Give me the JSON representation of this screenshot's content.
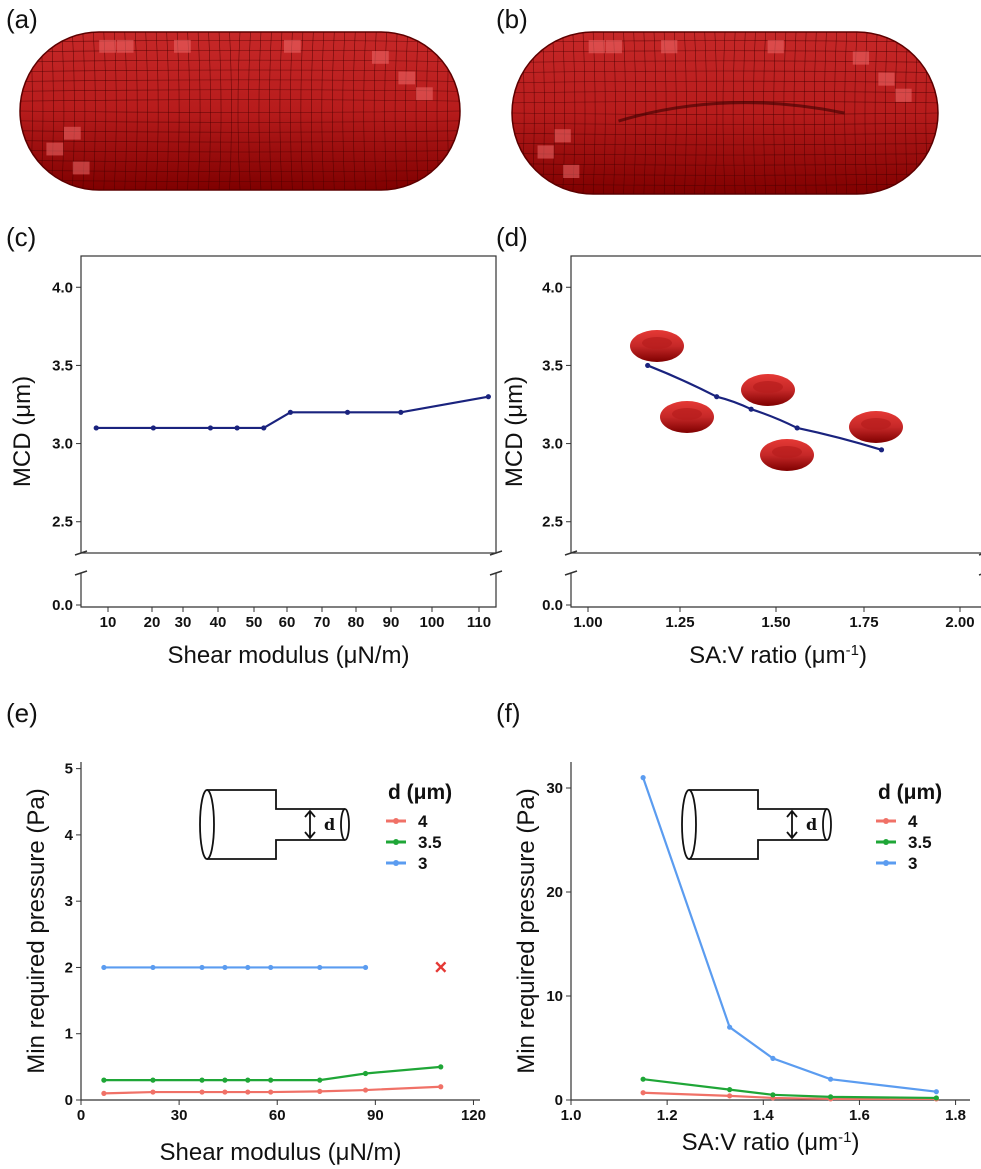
{
  "panel_labels": [
    "(a)",
    "(b)",
    "(c)",
    "(d)",
    "(e)",
    "(f)"
  ],
  "cells": {
    "a": {
      "name": "cell-rendering-a",
      "dimple": false
    },
    "b": {
      "name": "cell-rendering-b",
      "dimple": true
    }
  },
  "chart_data": [
    {
      "id": "c",
      "type": "line",
      "xlabel": "Shear modulus (μN/m)",
      "ylabel": "MCD (μm)",
      "xticks": [
        "10",
        "20",
        "30",
        "40",
        "50",
        "60",
        "70",
        "80",
        "90",
        "100",
        "110"
      ],
      "yticks": [
        "0.0",
        "2.5",
        "3.0",
        "3.5",
        "4.0"
      ],
      "xlim": [
        3,
        112
      ],
      "ylim": [
        2.3,
        4.2
      ],
      "axis_break": true,
      "series": [
        {
          "color": "#1a237e",
          "x": [
            7,
            22,
            37,
            44,
            51,
            58,
            73,
            87,
            110
          ],
          "y": [
            3.1,
            3.1,
            3.1,
            3.1,
            3.1,
            3.2,
            3.2,
            3.2,
            3.3
          ]
        }
      ]
    },
    {
      "id": "d",
      "type": "line",
      "xlabel": "SA:V ratio (μm",
      "xlabel_sup": "-1",
      "xlabel_end": ")",
      "ylabel": "MCD (μm)",
      "xticks": [
        "1.00",
        "1.25",
        "1.50",
        "1.75",
        "2.00"
      ],
      "yticks": [
        "0.0",
        "2.5",
        "3.0",
        "3.5",
        "4.0"
      ],
      "xlim": [
        0.95,
        2.03
      ],
      "ylim": [
        2.3,
        4.2
      ],
      "axis_break": true,
      "series": [
        {
          "color": "#1a237e",
          "x": [
            1.15,
            1.33,
            1.42,
            1.54,
            1.76
          ],
          "y": [
            3.5,
            3.3,
            3.22,
            3.1,
            2.96
          ]
        }
      ],
      "icons": "rbc-icon"
    },
    {
      "id": "e",
      "type": "line",
      "xlabel": "Shear modulus (μN/m)",
      "ylabel": "Min required pressure (Pa)",
      "xticks": [
        "0",
        "30",
        "60",
        "90",
        "120"
      ],
      "yticks": [
        "0",
        "1",
        "2",
        "3",
        "4",
        "5"
      ],
      "xlim": [
        0,
        122
      ],
      "ylim": [
        0,
        5.1
      ],
      "legend": {
        "title": "d (μm)",
        "placement": "top-right"
      },
      "series": [
        {
          "name": "4",
          "color": "#f07167",
          "x": [
            7,
            22,
            37,
            44,
            51,
            58,
            73,
            87,
            110
          ],
          "y": [
            0.1,
            0.12,
            0.12,
            0.12,
            0.12,
            0.12,
            0.13,
            0.15,
            0.2
          ]
        },
        {
          "name": "3.5",
          "color": "#1fa637",
          "x": [
            7,
            22,
            37,
            44,
            51,
            58,
            73,
            87,
            110
          ],
          "y": [
            0.3,
            0.3,
            0.3,
            0.3,
            0.3,
            0.3,
            0.3,
            0.4,
            0.5
          ]
        },
        {
          "name": "3",
          "color": "#5b9cf0",
          "x": [
            7,
            22,
            37,
            44,
            51,
            58,
            73,
            87
          ],
          "y": [
            2,
            2,
            2,
            2,
            2,
            2,
            2,
            2
          ]
        }
      ],
      "marker": {
        "symbol": "×",
        "color": "#e53935",
        "x": 110,
        "y": 2
      }
    },
    {
      "id": "f",
      "type": "line",
      "xlabel": "SA:V ratio (μm",
      "xlabel_sup": "-1",
      "xlabel_end": ")",
      "ylabel": "Min required pressure (Pa)",
      "xticks": [
        "1.0",
        "1.2",
        "1.4",
        "1.6",
        "1.8"
      ],
      "yticks": [
        "0",
        "10",
        "20",
        "30"
      ],
      "xlim": [
        1.0,
        1.83
      ],
      "ylim": [
        0,
        32.5
      ],
      "legend": {
        "title": "d (μm)",
        "placement": "top-right"
      },
      "series": [
        {
          "name": "4",
          "color": "#f07167",
          "x": [
            1.15,
            1.33,
            1.42,
            1.54,
            1.76
          ],
          "y": [
            0.7,
            0.4,
            0.2,
            0.1,
            0.1
          ]
        },
        {
          "name": "3.5",
          "color": "#1fa637",
          "x": [
            1.15,
            1.33,
            1.42,
            1.54,
            1.76
          ],
          "y": [
            2,
            1,
            0.5,
            0.3,
            0.2
          ]
        },
        {
          "name": "3",
          "color": "#5b9cf0",
          "x": [
            1.15,
            1.33,
            1.42,
            1.54,
            1.76
          ],
          "y": [
            31,
            7,
            4,
            2,
            0.8
          ]
        }
      ]
    }
  ]
}
